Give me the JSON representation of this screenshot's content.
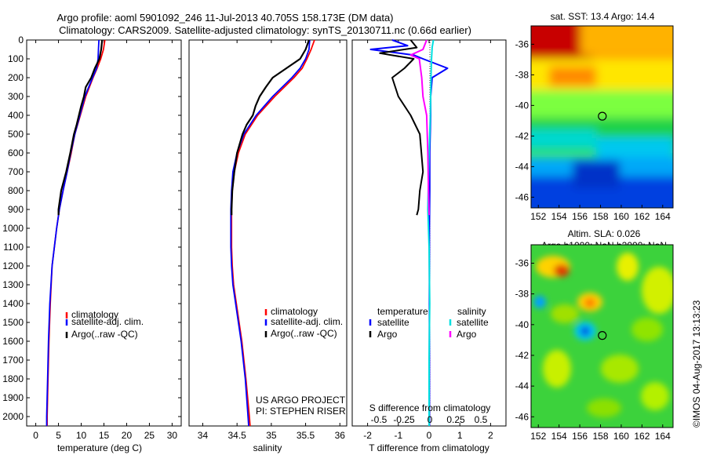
{
  "header": {
    "title_line1": "Argo profile: aoml 5901092_246 11-Jul-2013 40.705S 158.173E (DM data)",
    "title_line2": "Climatology: CARS2009. Satellite-adjusted climatology: synTS_20130711.nc (0.66d earlier)"
  },
  "colors": {
    "climatology": "#ff0000",
    "satellite": "#0000ff",
    "argo": "#000000",
    "sat_salinity": "#00e0e0",
    "argo_salinity": "#ff00ff"
  },
  "chart_data": [
    {
      "type": "line",
      "id": "temperature",
      "xlabel": "temperature (deg C)",
      "ylabel": "",
      "xlim": [
        -2,
        32
      ],
      "ylim": [
        0,
        2050
      ],
      "xticks": [
        0,
        5,
        10,
        15,
        20,
        25,
        30
      ],
      "yticks": [
        0,
        100,
        200,
        300,
        400,
        500,
        600,
        700,
        800,
        900,
        1000,
        1100,
        1200,
        1300,
        1400,
        1500,
        1600,
        1700,
        1800,
        1900,
        2000
      ],
      "legend": [
        "climatology",
        "satellite-adj. clim.",
        "Argo(..raw -QC)"
      ],
      "series": [
        {
          "name": "climatology",
          "depth": [
            0,
            50,
            100,
            150,
            200,
            300,
            400,
            500,
            600,
            700,
            800,
            900,
            1000,
            1200,
            1400,
            1600,
            1800,
            2000,
            2050
          ],
          "value": [
            15.2,
            14.9,
            14.3,
            13.5,
            12.6,
            11.0,
            9.8,
            8.6,
            7.8,
            6.9,
            6.0,
            5.2,
            4.6,
            3.6,
            3.2,
            2.9,
            2.7,
            2.5,
            2.5
          ]
        },
        {
          "name": "satellite-adj. clim.",
          "depth": [
            0,
            50,
            100,
            150,
            200,
            300,
            400,
            500,
            600,
            700,
            800,
            900,
            1000,
            1200,
            1400,
            1600,
            1800,
            2000,
            2050
          ],
          "value": [
            13.9,
            13.8,
            13.7,
            13.4,
            12.5,
            10.8,
            9.7,
            8.6,
            7.7,
            6.9,
            6.0,
            5.2,
            4.6,
            3.6,
            3.1,
            2.8,
            2.6,
            2.4,
            2.4
          ]
        },
        {
          "name": "Argo(..raw -QC)",
          "depth": [
            0,
            50,
            100,
            150,
            200,
            250,
            300,
            350,
            400,
            450,
            500,
            600,
            700,
            800,
            900,
            930
          ],
          "value": [
            14.6,
            14.4,
            14.0,
            13.0,
            12.2,
            11.0,
            10.6,
            10.0,
            9.5,
            9.0,
            8.4,
            7.6,
            6.7,
            5.6,
            5.0,
            5.0
          ]
        }
      ]
    },
    {
      "type": "line",
      "id": "salinity",
      "xlabel": "salinity",
      "ylabel": "",
      "xlim": [
        33.8,
        36.1
      ],
      "ylim": [
        0,
        2050
      ],
      "xticks": [
        34,
        34.5,
        35,
        35.5,
        36
      ],
      "legend": [
        "climatology",
        "satellite-adj. clim.",
        "Argo(..raw -QC)"
      ],
      "annotation_line1": "US ARGO PROJECT",
      "annotation_line2": "PI: STEPHEN RISER",
      "series": [
        {
          "name": "climatology",
          "depth": [
            0,
            50,
            100,
            150,
            200,
            300,
            400,
            500,
            600,
            700,
            800,
            900,
            1000,
            1100,
            1200,
            1300,
            1400,
            1500,
            1600,
            1800,
            2000,
            2050
          ],
          "value": [
            35.63,
            35.58,
            35.52,
            35.45,
            35.33,
            35.05,
            34.8,
            34.62,
            34.52,
            34.46,
            34.43,
            34.42,
            34.42,
            34.42,
            34.43,
            34.45,
            34.49,
            34.53,
            34.57,
            34.63,
            34.68,
            34.69
          ]
        },
        {
          "name": "satellite-adj. clim.",
          "depth": [
            0,
            50,
            100,
            150,
            200,
            300,
            400,
            500,
            600,
            700,
            800,
            900,
            1000,
            1100,
            1200,
            1300,
            1400,
            1500,
            1600,
            1800,
            2000,
            2050
          ],
          "value": [
            35.56,
            35.55,
            35.5,
            35.42,
            35.3,
            35.02,
            34.78,
            34.6,
            34.5,
            34.44,
            34.42,
            34.41,
            34.41,
            34.41,
            34.42,
            34.44,
            34.48,
            34.52,
            34.56,
            34.62,
            34.66,
            34.67
          ]
        },
        {
          "name": "Argo(..raw -QC)",
          "depth": [
            0,
            50,
            100,
            150,
            200,
            250,
            300,
            350,
            400,
            450,
            500,
            600,
            700,
            800,
            900,
            930
          ],
          "value": [
            35.55,
            35.5,
            35.42,
            35.22,
            35.02,
            34.92,
            34.83,
            34.77,
            34.73,
            34.64,
            34.58,
            34.5,
            34.46,
            34.43,
            34.42,
            34.42
          ]
        }
      ]
    },
    {
      "type": "line",
      "id": "difference",
      "xlabel_top": "S difference from climatology",
      "xlabel": "T difference from climatology",
      "xlim": [
        -2.5,
        2.5
      ],
      "ylim": [
        0,
        2050
      ],
      "xticks": [
        -2,
        -1,
        0,
        1,
        2
      ],
      "xticks_top_labels": [
        "-0.5",
        "-0.25",
        "0",
        "0.25",
        "0.5"
      ],
      "legend_temperature_title": "temperature",
      "legend_salinity_title": "salinity",
      "legend_labels": [
        "satellite",
        "Argo"
      ],
      "series": [
        {
          "name": "T satellite",
          "depth": [
            0,
            30,
            50,
            80,
            100,
            150,
            200,
            300,
            400,
            600,
            800,
            1000,
            1200,
            1500,
            2050
          ],
          "value": [
            -1.2,
            -0.7,
            -1.9,
            -0.5,
            -0.2,
            0.6,
            0.1,
            0.05,
            0.05,
            0.02,
            0.02,
            0.01,
            0.01,
            0.01,
            0.01
          ]
        },
        {
          "name": "T Argo",
          "depth": [
            0,
            40,
            70,
            100,
            150,
            200,
            300,
            400,
            500,
            600,
            700,
            800,
            900,
            930
          ],
          "value": [
            -0.6,
            -0.4,
            -1.6,
            -0.5,
            -0.8,
            -1.2,
            -1.0,
            -0.6,
            -0.3,
            -0.25,
            -0.2,
            -0.3,
            -0.35,
            -0.4
          ]
        },
        {
          "name": "S satellite",
          "depth": [
            0,
            40,
            100,
            200,
            400,
            600,
            900,
            1100,
            1400,
            1700,
            2050
          ],
          "value": [
            0.035,
            0.025,
            0.02,
            0.015,
            0.01,
            0.0,
            -0.01,
            0.0,
            0.005,
            0.0,
            0.0
          ]
        },
        {
          "name": "S Argo",
          "depth": [
            0,
            50,
            80,
            100,
            200,
            300,
            400,
            600,
            800,
            930
          ],
          "value": [
            -0.02,
            -0.05,
            -0.15,
            -0.08,
            -0.06,
            -0.05,
            -0.02,
            -0.01,
            -0.005,
            0.0
          ]
        }
      ]
    },
    {
      "type": "heatmap",
      "id": "sst_map",
      "title": "sat. SST: 13.4 Argo: 14.4",
      "xlim": [
        151.3,
        165
      ],
      "ylim": [
        -46.7,
        -34.8
      ],
      "xticks": [
        152,
        154,
        156,
        158,
        160,
        162,
        164
      ],
      "yticks": [
        -36,
        -38,
        -40,
        -42,
        -44,
        -46
      ],
      "marker": {
        "lon": 158.173,
        "lat": -40.705
      }
    },
    {
      "type": "heatmap",
      "id": "sla_map",
      "title_line1": "Altim. SLA: 0.026",
      "title_line2": "Argo h1000: NaN h2000: NaN",
      "xlim": [
        151.3,
        165
      ],
      "ylim": [
        -46.7,
        -34.8
      ],
      "xticks": [
        152,
        154,
        156,
        158,
        160,
        162,
        164
      ],
      "yticks": [
        -36,
        -38,
        -40,
        -42,
        -44,
        -46
      ],
      "marker": {
        "lon": 158.173,
        "lat": -40.705
      }
    }
  ],
  "footer": {
    "side_label": "©IMOS 04-Aug-2017 13:13:23"
  }
}
